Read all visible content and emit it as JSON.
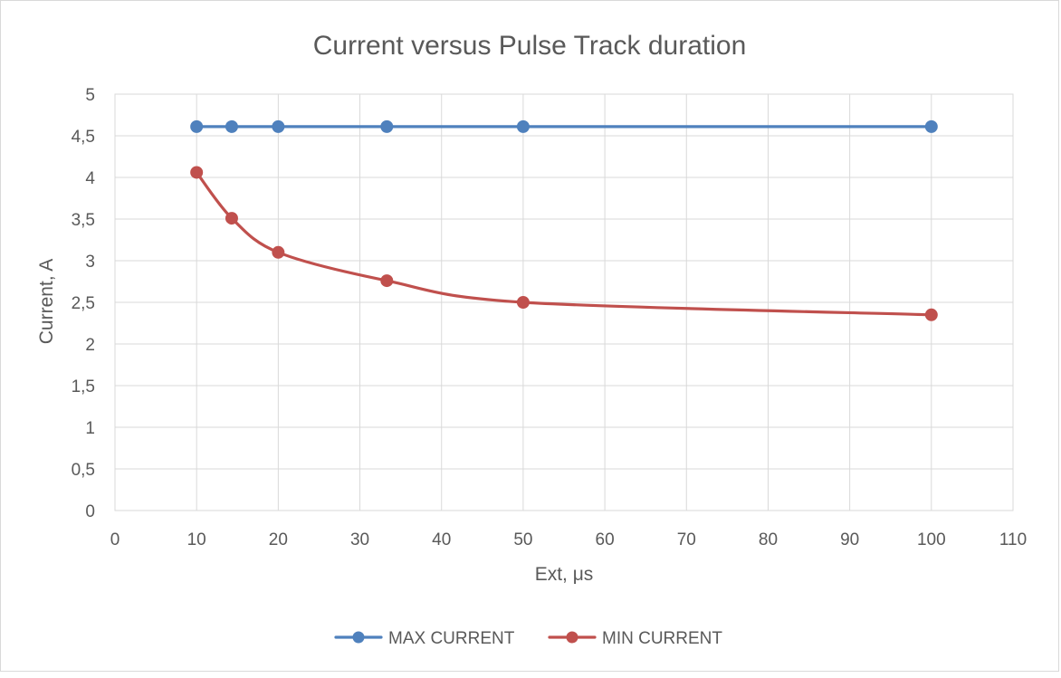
{
  "chart_data": {
    "type": "line",
    "title": "Current versus Pulse Track duration",
    "xlabel": "Ext, μs",
    "ylabel": "Current, A",
    "xlim": [
      0,
      110
    ],
    "ylim": [
      0,
      5
    ],
    "x_ticks": [
      0,
      10,
      20,
      30,
      40,
      50,
      60,
      70,
      80,
      90,
      100,
      110
    ],
    "x_tick_labels": [
      "0",
      "10",
      "20",
      "30",
      "40",
      "50",
      "60",
      "70",
      "80",
      "90",
      "100",
      "110"
    ],
    "y_ticks": [
      0,
      0.5,
      1,
      1.5,
      2,
      2.5,
      3,
      3.5,
      4,
      4.5,
      5
    ],
    "y_tick_labels": [
      "0",
      "0,5",
      "1",
      "1,5",
      "2",
      "2,5",
      "3",
      "3,5",
      "4",
      "4,5",
      "5"
    ],
    "grid": true,
    "legend_position": "bottom",
    "x": [
      10,
      14.3,
      20,
      33.3,
      50,
      100
    ],
    "series": [
      {
        "name": "MAX CURRENT",
        "values": [
          4.61,
          4.61,
          4.61,
          4.61,
          4.61,
          4.61
        ],
        "color": "#4f81bd"
      },
      {
        "name": "MIN CURRENT",
        "values": [
          4.06,
          3.51,
          3.1,
          2.76,
          2.5,
          2.35
        ],
        "color": "#c0504d"
      }
    ]
  }
}
